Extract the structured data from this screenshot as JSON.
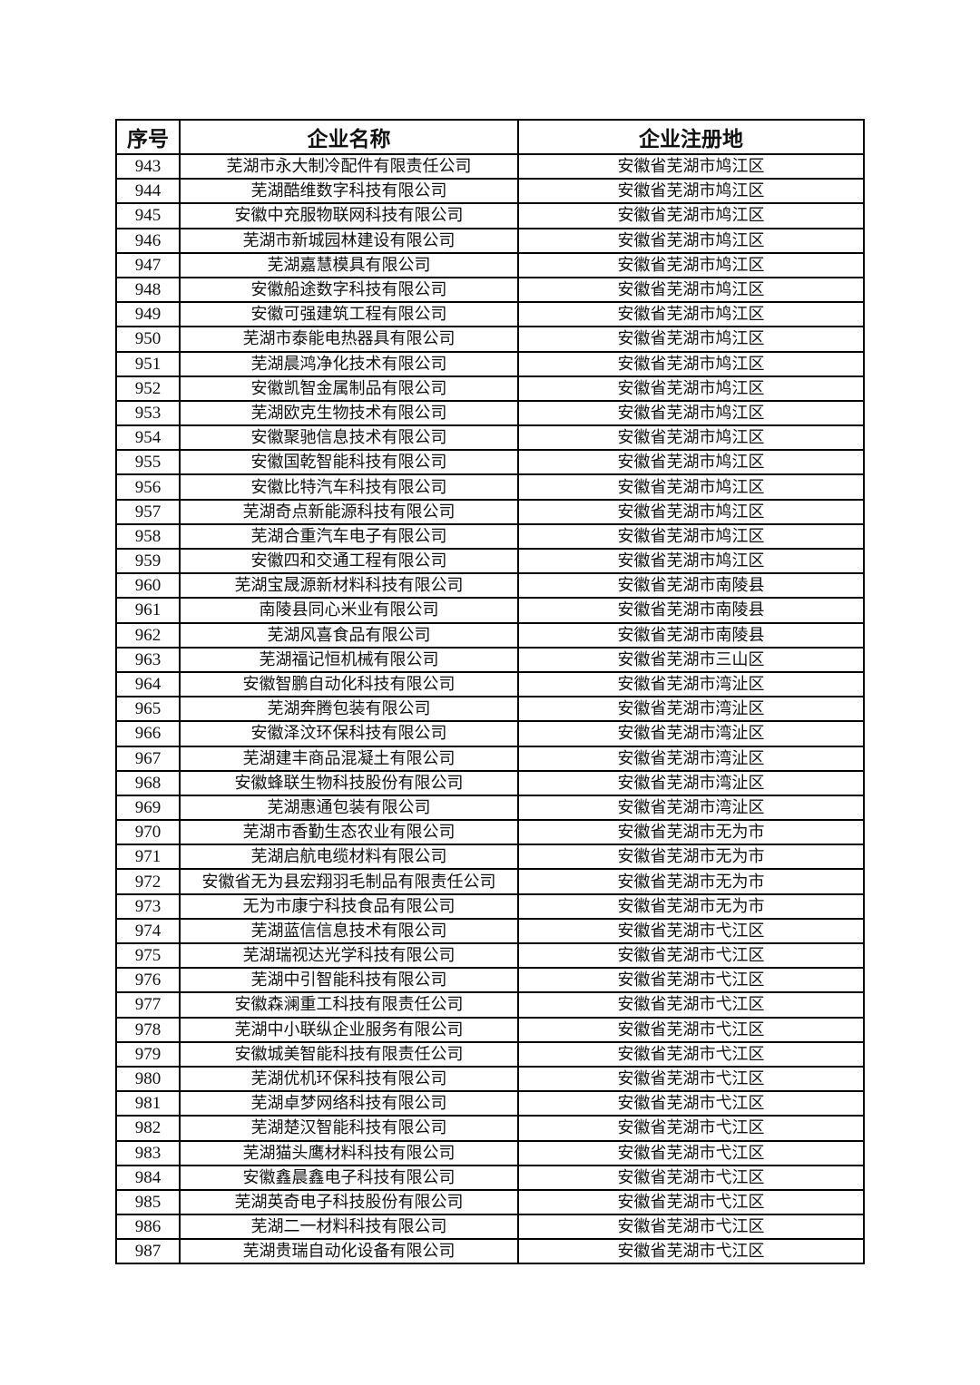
{
  "table": {
    "headers": [
      "序号",
      "企业名称",
      "企业注册地"
    ],
    "rows": [
      [
        "943",
        "芜湖市永大制冷配件有限责任公司",
        "安徽省芜湖市鸠江区"
      ],
      [
        "944",
        "芜湖酷维数字科技有限公司",
        "安徽省芜湖市鸠江区"
      ],
      [
        "945",
        "安徽中充服物联网科技有限公司",
        "安徽省芜湖市鸠江区"
      ],
      [
        "946",
        "芜湖市新城园林建设有限公司",
        "安徽省芜湖市鸠江区"
      ],
      [
        "947",
        "芜湖嘉慧模具有限公司",
        "安徽省芜湖市鸠江区"
      ],
      [
        "948",
        "安徽船途数字科技有限公司",
        "安徽省芜湖市鸠江区"
      ],
      [
        "949",
        "安徽可强建筑工程有限公司",
        "安徽省芜湖市鸠江区"
      ],
      [
        "950",
        "芜湖市泰能电热器具有限公司",
        "安徽省芜湖市鸠江区"
      ],
      [
        "951",
        "芜湖晨鸿净化技术有限公司",
        "安徽省芜湖市鸠江区"
      ],
      [
        "952",
        "安徽凯智金属制品有限公司",
        "安徽省芜湖市鸠江区"
      ],
      [
        "953",
        "芜湖欧克生物技术有限公司",
        "安徽省芜湖市鸠江区"
      ],
      [
        "954",
        "安徽聚驰信息技术有限公司",
        "安徽省芜湖市鸠江区"
      ],
      [
        "955",
        "安徽国乾智能科技有限公司",
        "安徽省芜湖市鸠江区"
      ],
      [
        "956",
        "安徽比特汽车科技有限公司",
        "安徽省芜湖市鸠江区"
      ],
      [
        "957",
        "芜湖奇点新能源科技有限公司",
        "安徽省芜湖市鸠江区"
      ],
      [
        "958",
        "芜湖合重汽车电子有限公司",
        "安徽省芜湖市鸠江区"
      ],
      [
        "959",
        "安徽四和交通工程有限公司",
        "安徽省芜湖市鸠江区"
      ],
      [
        "960",
        "芜湖宝晟源新材料科技有限公司",
        "安徽省芜湖市南陵县"
      ],
      [
        "961",
        "南陵县同心米业有限公司",
        "安徽省芜湖市南陵县"
      ],
      [
        "962",
        "芜湖风喜食品有限公司",
        "安徽省芜湖市南陵县"
      ],
      [
        "963",
        "芜湖福记恒机械有限公司",
        "安徽省芜湖市三山区"
      ],
      [
        "964",
        "安徽智鹏自动化科技有限公司",
        "安徽省芜湖市湾沚区"
      ],
      [
        "965",
        "芜湖奔腾包装有限公司",
        "安徽省芜湖市湾沚区"
      ],
      [
        "966",
        "安徽泽汶环保科技有限公司",
        "安徽省芜湖市湾沚区"
      ],
      [
        "967",
        "芜湖建丰商品混凝土有限公司",
        "安徽省芜湖市湾沚区"
      ],
      [
        "968",
        "安徽蜂联生物科技股份有限公司",
        "安徽省芜湖市湾沚区"
      ],
      [
        "969",
        "芜湖惠通包装有限公司",
        "安徽省芜湖市湾沚区"
      ],
      [
        "970",
        "芜湖市香勤生态农业有限公司",
        "安徽省芜湖市无为市"
      ],
      [
        "971",
        "芜湖启航电缆材料有限公司",
        "安徽省芜湖市无为市"
      ],
      [
        "972",
        "安徽省无为县宏翔羽毛制品有限责任公司",
        "安徽省芜湖市无为市"
      ],
      [
        "973",
        "无为市康宁科技食品有限公司",
        "安徽省芜湖市无为市"
      ],
      [
        "974",
        "芜湖蓝信信息技术有限公司",
        "安徽省芜湖市弋江区"
      ],
      [
        "975",
        "芜湖瑞视达光学科技有限公司",
        "安徽省芜湖市弋江区"
      ],
      [
        "976",
        "芜湖中引智能科技有限公司",
        "安徽省芜湖市弋江区"
      ],
      [
        "977",
        "安徽森澜重工科技有限责任公司",
        "安徽省芜湖市弋江区"
      ],
      [
        "978",
        "芜湖中小联纵企业服务有限公司",
        "安徽省芜湖市弋江区"
      ],
      [
        "979",
        "安徽城美智能科技有限责任公司",
        "安徽省芜湖市弋江区"
      ],
      [
        "980",
        "芜湖优机环保科技有限公司",
        "安徽省芜湖市弋江区"
      ],
      [
        "981",
        "芜湖卓梦网络科技有限公司",
        "安徽省芜湖市弋江区"
      ],
      [
        "982",
        "芜湖楚汉智能科技有限公司",
        "安徽省芜湖市弋江区"
      ],
      [
        "983",
        "芜湖猫头鹰材料科技有限公司",
        "安徽省芜湖市弋江区"
      ],
      [
        "984",
        "安徽鑫晨鑫电子科技有限公司",
        "安徽省芜湖市弋江区"
      ],
      [
        "985",
        "芜湖英奇电子科技股份有限公司",
        "安徽省芜湖市弋江区"
      ],
      [
        "986",
        "芜湖二一材料科技有限公司",
        "安徽省芜湖市弋江区"
      ],
      [
        "987",
        "芜湖贵瑞自动化设备有限公司",
        "安徽省芜湖市弋江区"
      ]
    ]
  }
}
